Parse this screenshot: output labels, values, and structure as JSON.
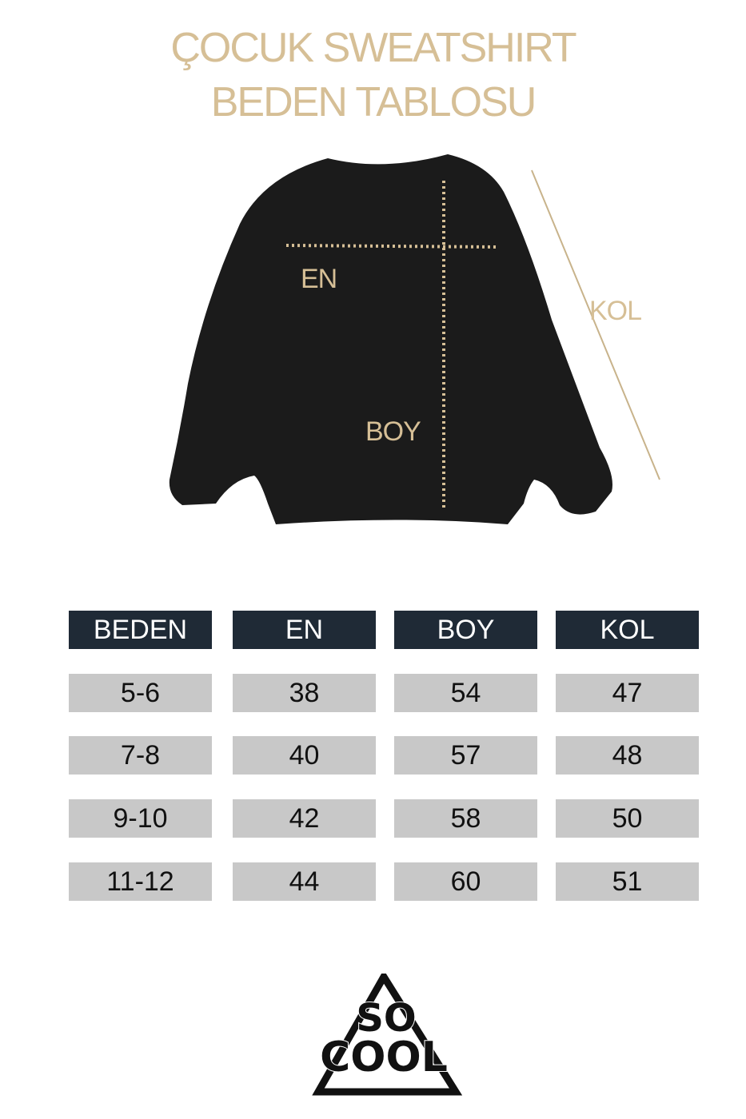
{
  "title": {
    "line1": "ÇOCUK SWEATSHIRT",
    "line2": "BEDEN TABLOSU"
  },
  "diagram_labels": {
    "en": "EN",
    "boy": "BOY",
    "kol": "KOL"
  },
  "colors": {
    "accent": "#d6bf96",
    "header_bg": "#1f2a36",
    "cell_bg": "#c8c8c8",
    "garment": "#1b1b1b"
  },
  "table": {
    "headers": [
      "BEDEN",
      "EN",
      "BOY",
      "KOL"
    ],
    "rows": [
      [
        "5-6",
        "38",
        "54",
        "47"
      ],
      [
        "7-8",
        "40",
        "57",
        "48"
      ],
      [
        "9-10",
        "42",
        "58",
        "50"
      ],
      [
        "11-12",
        "44",
        "60",
        "51"
      ]
    ]
  },
  "logo": {
    "text": "SO COOL"
  }
}
